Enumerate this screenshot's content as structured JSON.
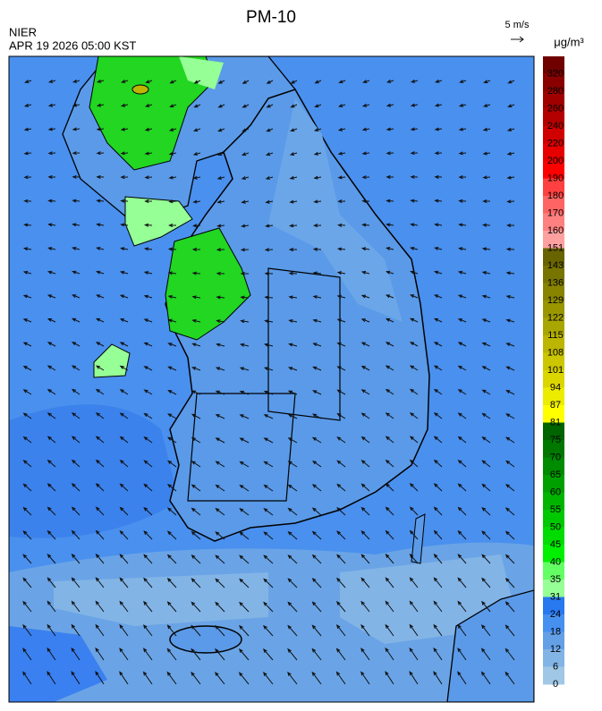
{
  "header": {
    "title": "PM-10",
    "agency": "NIER",
    "datetime": "APR 19 2026 05:00 KST",
    "wind_scale": "5 m/s",
    "unit": "μg/m³"
  },
  "colorbar": {
    "ticks": [
      320,
      280,
      260,
      240,
      220,
      200,
      190,
      180,
      170,
      160,
      151,
      143,
      136,
      129,
      122,
      115,
      108,
      101,
      94,
      87,
      81,
      75,
      70,
      65,
      60,
      55,
      50,
      45,
      40,
      35,
      31,
      24,
      18,
      12,
      6,
      0
    ],
    "colors": [
      "#700000",
      "#8a0000",
      "#a00000",
      "#b40000",
      "#d00000",
      "#e60000",
      "#ff0000",
      "#ff4040",
      "#ff6464",
      "#ff8080",
      "#ffa0a0",
      "#686400",
      "#787400",
      "#888400",
      "#9a9600",
      "#aaa600",
      "#bcb600",
      "#ccc600",
      "#dcd600",
      "#ecec00",
      "#ffff00",
      "#006400",
      "#007800",
      "#008c00",
      "#00a000",
      "#00b400",
      "#00c800",
      "#00dc00",
      "#00f000",
      "#64ff64",
      "#96ff96",
      "#2878f0",
      "#4690f0",
      "#64a0e6",
      "#82b4e6",
      "#a0c8e6"
    ]
  }
}
